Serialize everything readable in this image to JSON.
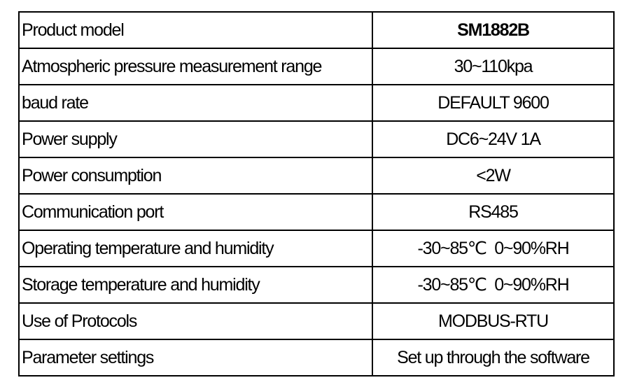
{
  "table": {
    "rows": [
      [
        "Product model",
        "SM1882B"
      ],
      [
        "Atmospheric pressure measurement range",
        "30~110kpa"
      ],
      [
        "baud rate",
        "DEFAULT 9600"
      ],
      [
        "Power supply",
        "DC6~24V 1A"
      ],
      [
        "Power consumption",
        "<2W"
      ],
      [
        "Communication port",
        "RS485"
      ],
      [
        "Operating temperature and humidity",
        "-30~85℃  0~90%RH"
      ],
      [
        "Storage temperature and humidity",
        "-30~85℃  0~90%RH"
      ],
      [
        "Use of Protocols",
        "MODBUS-RTU"
      ],
      [
        "Parameter settings",
        "Set up through the software"
      ]
    ]
  }
}
